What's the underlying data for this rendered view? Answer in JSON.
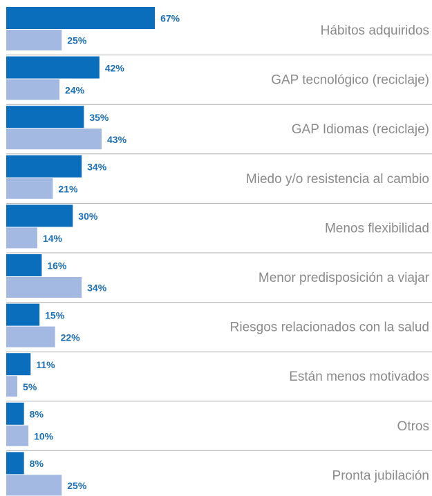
{
  "chart_data": {
    "type": "hbar",
    "categories": [
      "Hábitos adquiridos",
      "GAP tecnológico (reciclaje)",
      "GAP Idiomas (reciclaje)",
      "Miedo y/o resistencia al cambio",
      "Menos flexibilidad",
      "Menor predisposición a viajar",
      "Riesgos relacionados con la salud",
      "Están menos motivados",
      "Otros",
      "Pronta jubilación"
    ],
    "series": [
      {
        "color": "#0a6ebd",
        "values": [
          67,
          42,
          35,
          34,
          30,
          16,
          15,
          11,
          8,
          8
        ],
        "value_labels": [
          "67%",
          "42%",
          "35%",
          "34%",
          "30%",
          "16%",
          "15%",
          "11%",
          "8%",
          "8%"
        ]
      },
      {
        "color": "#a4b9e2",
        "values": [
          25,
          24,
          43,
          21,
          14,
          34,
          22,
          5,
          10,
          25
        ],
        "value_labels": [
          "25%",
          "24%",
          "43%",
          "21%",
          "14%",
          "34%",
          "22%",
          "5%",
          "10%",
          "25%"
        ]
      }
    ],
    "xlim": [
      0,
      100
    ]
  }
}
